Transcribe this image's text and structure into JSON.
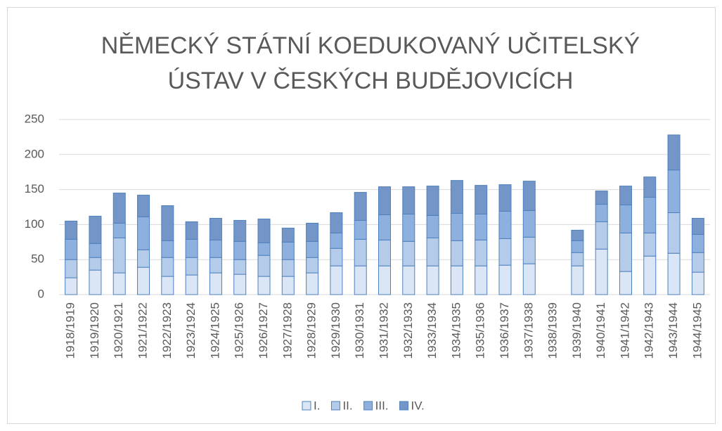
{
  "chart_data": {
    "type": "stacked_bar",
    "title": "NĚMECKÝ STÁTNÍ KOEDUKOVANÝ UČITELSKÝ ÚSTAV V ČESKÝCH BUDĚJOVICÍCH",
    "categories": [
      "1918/1919",
      "1919/1920",
      "1920/1921",
      "1921/1922",
      "1922/1923",
      "1923/1924",
      "1924/1925",
      "1925/1926",
      "1926/1927",
      "1927/1928",
      "1928/1929",
      "1929/1930",
      "1930/1931",
      "1931/1932",
      "1932/1933",
      "1933/1934",
      "1934/1935",
      "1935/1936",
      "1936/1937",
      "1937/1938",
      "1938/1939",
      "1939/1940",
      "1940/1941",
      "1941/1942",
      "1942/1943",
      "1943/1944",
      "1944/1945"
    ],
    "series": [
      {
        "name": "I.",
        "color": "#dae5f5",
        "values": [
          24,
          35,
          31,
          39,
          26,
          28,
          31,
          29,
          26,
          26,
          31,
          41,
          41,
          41,
          41,
          41,
          41,
          41,
          42,
          44,
          null,
          41,
          65,
          33,
          55,
          59,
          32
        ]
      },
      {
        "name": "II.",
        "color": "#b4cbea",
        "values": [
          26,
          18,
          50,
          25,
          27,
          25,
          22,
          21,
          30,
          24,
          22,
          25,
          38,
          37,
          35,
          40,
          36,
          37,
          38,
          38,
          null,
          19,
          39,
          55,
          33,
          58,
          28
        ]
      },
      {
        "name": "III.",
        "color": "#8db0de",
        "values": [
          29,
          20,
          21,
          47,
          24,
          26,
          25,
          26,
          18,
          25,
          23,
          22,
          27,
          36,
          39,
          32,
          39,
          37,
          39,
          38,
          null,
          17,
          25,
          40,
          51,
          61,
          26
        ]
      },
      {
        "name": "IV.",
        "color": "#7395c8",
        "values": [
          26,
          39,
          43,
          31,
          50,
          25,
          31,
          30,
          34,
          20,
          26,
          29,
          40,
          40,
          39,
          42,
          47,
          41,
          38,
          42,
          null,
          15,
          19,
          27,
          29,
          50,
          23
        ]
      }
    ],
    "ylim": [
      0,
      250
    ],
    "yticks": [
      0,
      50,
      100,
      150,
      200,
      250
    ],
    "grid": true,
    "legend": "bottom"
  }
}
